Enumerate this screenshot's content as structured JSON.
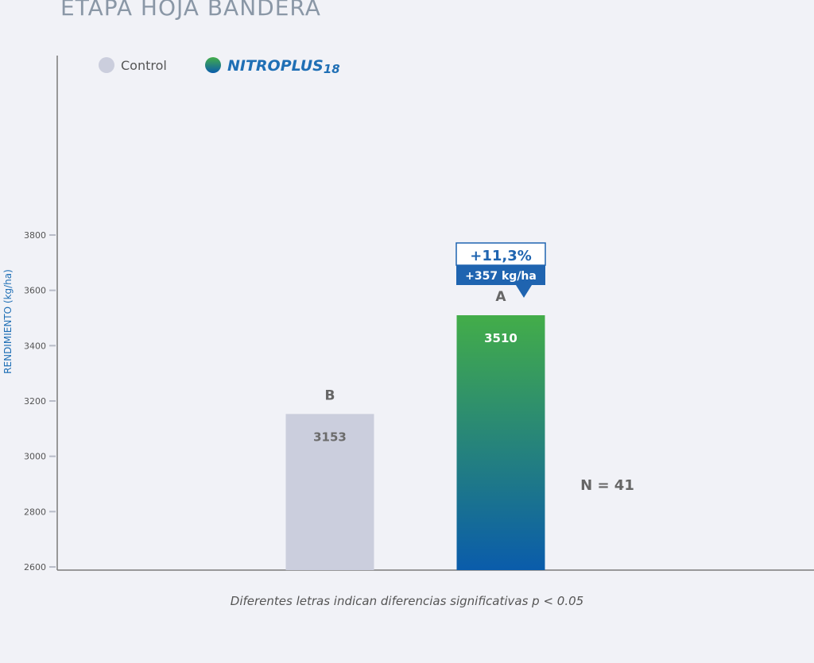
{
  "title": "ETAPA HOJA BANDERA",
  "legend": [
    {
      "label": "Control",
      "color": "#cbcedd",
      "kind": "plain"
    },
    {
      "label": "NITROPLUS",
      "suffix": "18",
      "color": "#1f6fb5",
      "kind": "brand"
    }
  ],
  "colors": {
    "axis": "#7a7a7a",
    "tick_label": "#555555",
    "ylabel": "#1f6fb5",
    "control_bar": "#cbcedd",
    "nitro_top": "#43ad49",
    "nitro_bottom": "#0a5cab",
    "callout": "#1f64b0"
  },
  "callout": {
    "pct": "+11,3%",
    "kg": "+357 kg/ha"
  },
  "n_label": "N = 41",
  "footnote": "Diferentes letras indican diferencias significativas p < 0.05",
  "chart_data": {
    "type": "bar",
    "title": "ETAPA HOJA BANDERA",
    "ylabel": "RENDIMIENTO (kg/ha)",
    "xlabel": "",
    "ylim": [
      2600,
      3800
    ],
    "yticks": [
      2600,
      2800,
      3000,
      3200,
      3400,
      3600,
      3800
    ],
    "categories": [
      "Control",
      "NITROPLUS18"
    ],
    "values": [
      3153,
      3510
    ],
    "value_labels": [
      "3153",
      "3510"
    ],
    "significance_letters": [
      "B",
      "A"
    ],
    "legend_position": "top-left",
    "grid": false
  }
}
